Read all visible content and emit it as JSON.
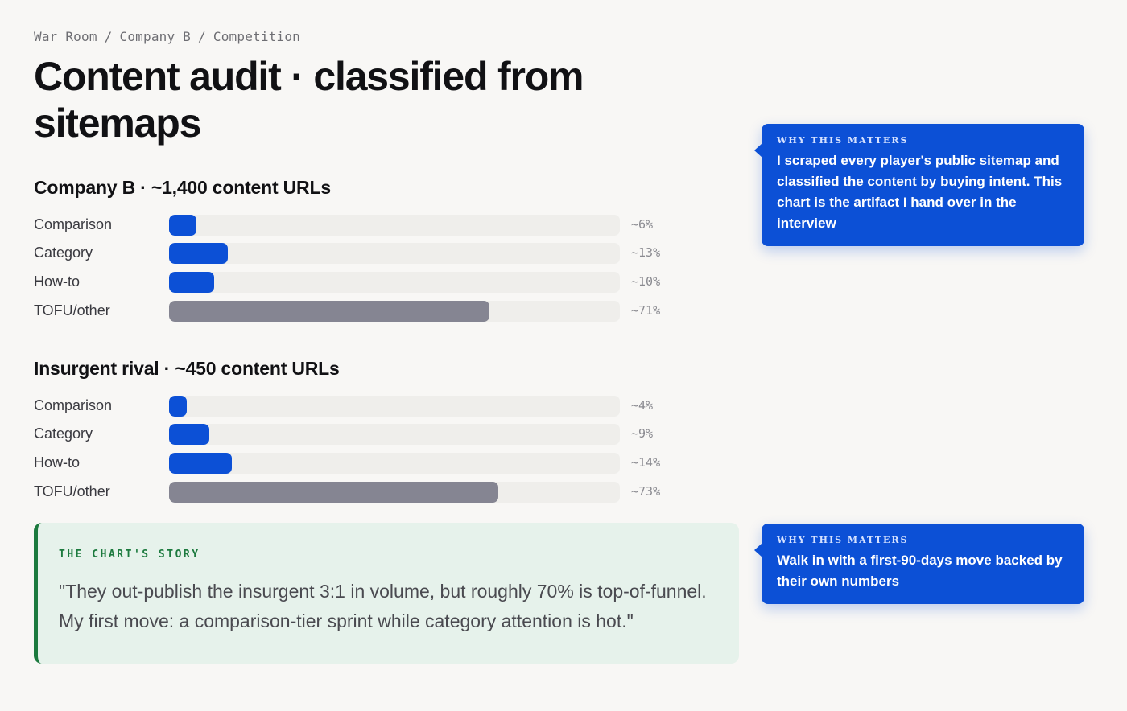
{
  "breadcrumb": [
    "War Room",
    "Company B",
    "Competition"
  ],
  "breadcrumb_separator": "/",
  "title": "Content audit · classified from sitemaps",
  "colors": {
    "accent": "#0c50d6",
    "other_bar": "#858592",
    "track": "#efeeeb",
    "story_green": "#1c7a3e",
    "story_bg": "#e6f2eb"
  },
  "chart_data": [
    {
      "type": "bar",
      "title": "Company B · ~1,400 content URLs",
      "categories": [
        "Comparison",
        "Category",
        "How-to",
        "TOFU/other"
      ],
      "values": [
        6,
        13,
        10,
        71
      ],
      "value_labels": [
        "~6%",
        "~13%",
        "~10%",
        "~71%"
      ],
      "ylim": [
        0,
        100
      ]
    },
    {
      "type": "bar",
      "title": "Insurgent rival · ~450 content URLs",
      "categories": [
        "Comparison",
        "Category",
        "How-to",
        "TOFU/other"
      ],
      "values": [
        4,
        9,
        14,
        73
      ],
      "value_labels": [
        "~4%",
        "~9%",
        "~14%",
        "~73%"
      ],
      "ylim": [
        0,
        100
      ]
    }
  ],
  "callouts": [
    {
      "kicker": "WHY THIS MATTERS",
      "text": "I scraped every player's public sitemap and classified the content by buying intent. This chart is the artifact I hand over in the interview"
    },
    {
      "kicker": "WHY THIS MATTERS",
      "text": "Walk in with a first-90-days move backed by their own numbers"
    }
  ],
  "story": {
    "kicker": "THE CHART'S STORY",
    "quote": "\"They out-publish the insurgent 3:1 in volume, but roughly 70% is top-of-funnel. My first move: a comparison-tier sprint while category attention is hot.\""
  }
}
